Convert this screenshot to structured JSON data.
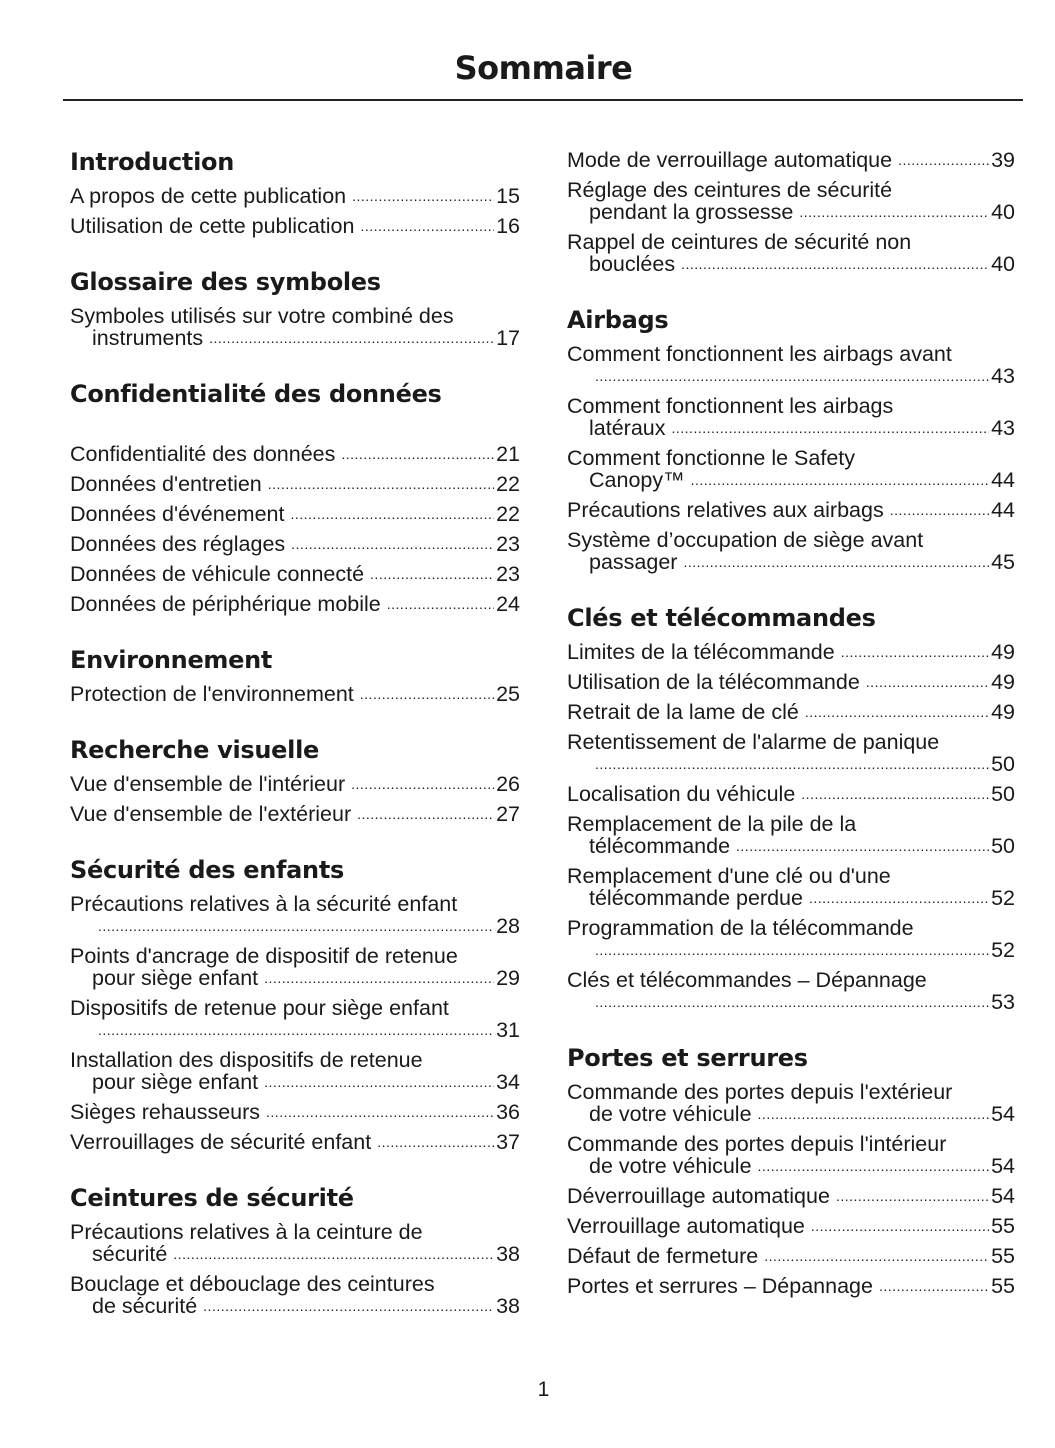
{
  "title": "Sommaire",
  "page_number": "1",
  "columns": [
    [
      {
        "heading": "Introduction",
        "entries": [
          {
            "text": "A propos de cette publication",
            "page": "15"
          },
          {
            "text": "Utilisation de cette publication",
            "page": "16"
          }
        ]
      },
      {
        "heading": "Glossaire des symboles",
        "entries": [
          {
            "text": "Symboles utilisés sur votre combiné des",
            "cont": "instruments",
            "page": "17"
          }
        ]
      },
      {
        "heading": "Confidentialité des données",
        "extra_gap": true,
        "entries": [
          {
            "text": "Confidentialité des données",
            "page": "21"
          },
          {
            "text": "Données d'entretien",
            "page": "22"
          },
          {
            "text": "Données d'événement",
            "page": "22"
          },
          {
            "text": "Données des réglages",
            "page": "23"
          },
          {
            "text": "Données de véhicule connecté",
            "page": "23"
          },
          {
            "text": "Données de périphérique mobile",
            "page": "24"
          }
        ]
      },
      {
        "heading": "Environnement",
        "entries": [
          {
            "text": "Protection de l'environnement",
            "page": "25"
          }
        ]
      },
      {
        "heading": "Recherche visuelle",
        "entries": [
          {
            "text": "Vue d'ensemble de l'intérieur",
            "page": "26"
          },
          {
            "text": "Vue d'ensemble de l'extérieur",
            "page": "27"
          }
        ]
      },
      {
        "heading": "Sécurité des enfants",
        "entries": [
          {
            "text": "Précautions relatives à la sécurité enfant",
            "cont": "",
            "page": "28"
          },
          {
            "text": "Points d'ancrage de dispositif de retenue",
            "cont": "pour siège enfant",
            "page": "29"
          },
          {
            "text": "Dispositifs de retenue pour siège enfant",
            "cont": "",
            "page": "31"
          },
          {
            "text": "Installation des dispositifs de retenue",
            "cont": "pour siège enfant",
            "page": "34"
          },
          {
            "text": "Sièges rehausseurs",
            "page": "36"
          },
          {
            "text": "Verrouillages de sécurité enfant",
            "page": "37"
          }
        ]
      },
      {
        "heading": "Ceintures de sécurité",
        "entries": [
          {
            "text": "Précautions relatives à la ceinture de",
            "cont": "sécurité",
            "page": "38"
          },
          {
            "text": "Bouclage et débouclage des ceintures",
            "cont": "de sécurité",
            "page": "38"
          }
        ]
      }
    ],
    [
      {
        "heading": "",
        "entries": [
          {
            "text": "Mode de verrouillage automatique",
            "page": "39"
          },
          {
            "text": "Réglage des ceintures de sécurité",
            "cont": "pendant la grossesse",
            "page": "40"
          },
          {
            "text": "Rappel de ceintures de sécurité non",
            "cont": "bouclées",
            "page": "40"
          }
        ]
      },
      {
        "heading": "Airbags",
        "entries": [
          {
            "text": "Comment fonctionnent les airbags avant",
            "cont": "",
            "page": "43"
          },
          {
            "text": "Comment fonctionnent les airbags",
            "cont": "latéraux",
            "page": "43"
          },
          {
            "text": "Comment fonctionne le Safety",
            "cont": "Canopy™",
            "page": "44"
          },
          {
            "text": "Précautions relatives aux airbags",
            "page": "44"
          },
          {
            "text": "Système d’occupation de siège avant",
            "cont": "passager",
            "page": "45"
          }
        ]
      },
      {
        "heading": "Clés et télécommandes",
        "entries": [
          {
            "text": "Limites de la télécommande",
            "page": "49"
          },
          {
            "text": "Utilisation de la télécommande",
            "page": "49"
          },
          {
            "text": "Retrait de la lame de clé",
            "page": "49"
          },
          {
            "text": "Retentissement de l'alarme de panique",
            "cont": "",
            "page": "50"
          },
          {
            "text": "Localisation du véhicule",
            "page": "50"
          },
          {
            "text": "Remplacement de la pile de la",
            "cont": "télécommande",
            "page": "50"
          },
          {
            "text": "Remplacement d'une clé ou d'une",
            "cont": "télécommande perdue",
            "page": "52"
          },
          {
            "text": "Programmation de la télécommande",
            "cont": "",
            "page": "52"
          },
          {
            "text": "Clés et télécommandes – Dépannage",
            "cont": "",
            "page": "53"
          }
        ]
      },
      {
        "heading": "Portes et serrures",
        "entries": [
          {
            "text": "Commande des portes depuis l'extérieur",
            "cont": "de votre véhicule",
            "page": "54"
          },
          {
            "text": "Commande des portes depuis l'intérieur",
            "cont": "de votre véhicule",
            "page": "54"
          },
          {
            "text": "Déverrouillage automatique",
            "page": "54"
          },
          {
            "text": "Verrouillage automatique",
            "page": "55"
          },
          {
            "text": "Défaut de fermeture",
            "page": "55"
          },
          {
            "text": "Portes et serrures – Dépannage",
            "page": "55"
          }
        ]
      }
    ]
  ]
}
